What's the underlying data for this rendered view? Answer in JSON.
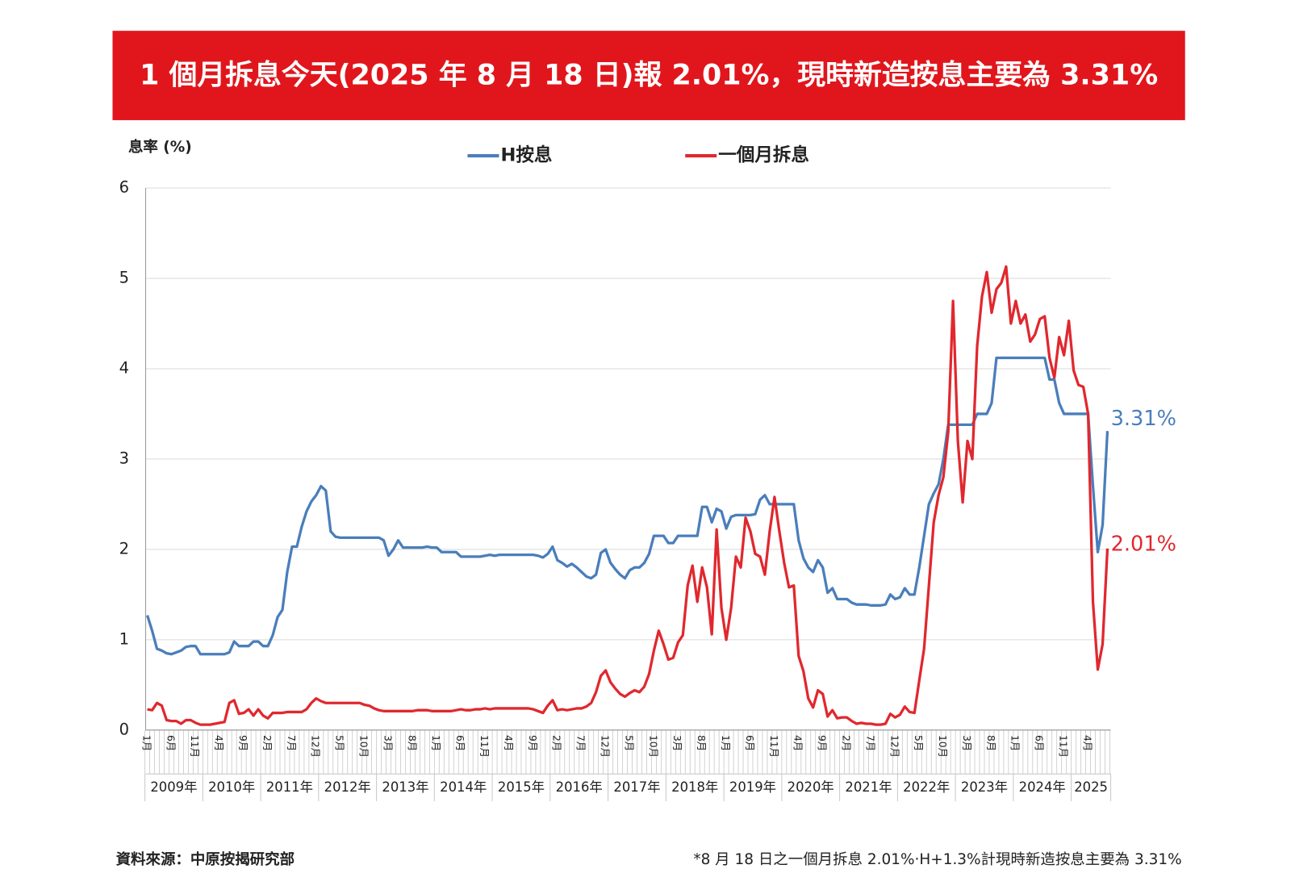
{
  "chart_data": {
    "type": "line",
    "title": "1 個月拆息今天(2025 年 8 月 18 日)報 2.01%，現時新造按息主要為 3.31%",
    "y_label": "息率 (%)",
    "source": "資料來源：中原按揭研究部",
    "note": "*8 月 18 日之一個月拆息 2.01%‧H+1.3%計現時新造按息主要為 3.31%",
    "ylim": [
      0,
      6
    ],
    "yticks": [
      0,
      1,
      2,
      3,
      4,
      5,
      6
    ],
    "grid": true,
    "year_labels": [
      "2009年",
      "2010年",
      "2011年",
      "2012年",
      "2013年",
      "2014年",
      "2015年",
      "2016年",
      "2017年",
      "2018年",
      "2019年",
      "2020年",
      "2021年",
      "2022年",
      "2023年",
      "2024年",
      "2025"
    ],
    "categories": [
      "1月",
      null,
      null,
      null,
      null,
      "6月",
      null,
      null,
      null,
      null,
      "11月",
      null,
      null,
      null,
      null,
      "4月",
      null,
      null,
      null,
      null,
      "9月",
      null,
      null,
      null,
      null,
      "2月",
      null,
      null,
      null,
      null,
      "7月",
      null,
      null,
      null,
      null,
      "12月",
      null,
      null,
      null,
      null,
      "5月",
      null,
      null,
      null,
      null,
      "10月",
      null,
      null,
      null,
      null,
      "3月",
      null,
      null,
      null,
      null,
      "8月",
      null,
      null,
      null,
      null,
      "1月",
      null,
      null,
      null,
      null,
      "6月",
      null,
      null,
      null,
      null,
      "11月",
      null,
      null,
      null,
      null,
      "4月",
      null,
      null,
      null,
      null,
      "9月",
      null,
      null,
      null,
      null,
      "2月",
      null,
      null,
      null,
      null,
      "7月",
      null,
      null,
      null,
      null,
      "12月",
      null,
      null,
      null,
      null,
      "5月",
      null,
      null,
      null,
      null,
      "10月",
      null,
      null,
      null,
      null,
      "3月",
      null,
      null,
      null,
      null,
      "8月",
      null,
      null,
      null,
      null,
      "1月",
      null,
      null,
      null,
      null,
      "6月",
      null,
      null,
      null,
      null,
      "11月",
      null,
      null,
      null,
      null,
      "4月",
      null,
      null,
      null,
      null,
      "9月",
      null,
      null,
      null,
      null,
      "2月",
      null,
      null,
      null,
      null,
      "7月",
      null,
      null,
      null,
      null,
      "12月",
      null,
      null,
      null,
      null,
      "5月",
      null,
      null,
      null,
      null,
      "10月",
      null,
      null,
      null,
      null,
      "3月",
      null,
      null,
      null,
      null,
      "8月",
      null,
      null,
      null,
      null,
      "1月",
      null,
      null,
      null,
      null,
      "6月",
      null,
      null,
      null,
      null,
      "11月",
      null,
      null,
      null,
      null,
      "4月",
      null,
      null,
      null,
      null
    ],
    "series": [
      {
        "name": "H按息",
        "color": "#4a7ebb",
        "end_label": "3.31%",
        "values": [
          1.27,
          1.1,
          0.9,
          0.88,
          0.85,
          0.84,
          0.86,
          0.88,
          0.92,
          0.93,
          0.93,
          0.84,
          0.84,
          0.84,
          0.84,
          0.84,
          0.84,
          0.86,
          0.98,
          0.93,
          0.93,
          0.93,
          0.98,
          0.98,
          0.93,
          0.93,
          1.05,
          1.25,
          1.33,
          1.75,
          2.03,
          2.03,
          2.25,
          2.42,
          2.53,
          2.6,
          2.7,
          2.65,
          2.2,
          2.14,
          2.13,
          2.13,
          2.13,
          2.13,
          2.13,
          2.13,
          2.13,
          2.13,
          2.13,
          2.1,
          1.93,
          2.0,
          2.1,
          2.02,
          2.02,
          2.02,
          2.02,
          2.02,
          2.03,
          2.02,
          2.02,
          1.97,
          1.97,
          1.97,
          1.97,
          1.92,
          1.92,
          1.92,
          1.92,
          1.92,
          1.93,
          1.94,
          1.93,
          1.94,
          1.94,
          1.94,
          1.94,
          1.94,
          1.94,
          1.94,
          1.94,
          1.93,
          1.91,
          1.95,
          2.03,
          1.88,
          1.85,
          1.81,
          1.84,
          1.8,
          1.75,
          1.7,
          1.68,
          1.72,
          1.96,
          2.0,
          1.85,
          1.78,
          1.72,
          1.68,
          1.77,
          1.8,
          1.8,
          1.85,
          1.95,
          2.15,
          2.15,
          2.15,
          2.07,
          2.07,
          2.15,
          2.15,
          2.15,
          2.15,
          2.15,
          2.47,
          2.47,
          2.3,
          2.45,
          2.42,
          2.23,
          2.36,
          2.38,
          2.38,
          2.38,
          2.38,
          2.39,
          2.55,
          2.6,
          2.5,
          2.5,
          2.5,
          2.5,
          2.5,
          2.5,
          2.1,
          1.9,
          1.8,
          1.75,
          1.88,
          1.8,
          1.52,
          1.57,
          1.45,
          1.45,
          1.45,
          1.41,
          1.39,
          1.39,
          1.39,
          1.38,
          1.38,
          1.38,
          1.39,
          1.5,
          1.45,
          1.47,
          1.57,
          1.5,
          1.5,
          1.8,
          2.15,
          2.5,
          2.62,
          2.72,
          3.0,
          3.38,
          3.38,
          3.38,
          3.38,
          3.38,
          3.38,
          3.5,
          3.5,
          3.5,
          3.62,
          4.12,
          4.12,
          4.12,
          4.12,
          4.12,
          4.12,
          4.12,
          4.12,
          4.12,
          4.12,
          4.12,
          3.88,
          3.88,
          3.62,
          3.5,
          3.5,
          3.5,
          3.5,
          3.5,
          3.5,
          2.7,
          1.97,
          2.27,
          3.31
        ]
      },
      {
        "name": "一個月拆息",
        "color": "#e0282e",
        "end_label": "2.01%",
        "values": [
          0.23,
          0.22,
          0.3,
          0.27,
          0.11,
          0.1,
          0.1,
          0.07,
          0.11,
          0.11,
          0.08,
          0.06,
          0.06,
          0.06,
          0.07,
          0.08,
          0.09,
          0.3,
          0.33,
          0.18,
          0.19,
          0.23,
          0.16,
          0.23,
          0.16,
          0.13,
          0.19,
          0.19,
          0.19,
          0.2,
          0.2,
          0.2,
          0.2,
          0.23,
          0.3,
          0.35,
          0.32,
          0.3,
          0.3,
          0.3,
          0.3,
          0.3,
          0.3,
          0.3,
          0.3,
          0.28,
          0.27,
          0.24,
          0.22,
          0.21,
          0.21,
          0.21,
          0.21,
          0.21,
          0.21,
          0.21,
          0.22,
          0.22,
          0.22,
          0.21,
          0.21,
          0.21,
          0.21,
          0.21,
          0.22,
          0.23,
          0.22,
          0.22,
          0.23,
          0.23,
          0.24,
          0.23,
          0.24,
          0.24,
          0.24,
          0.24,
          0.24,
          0.24,
          0.24,
          0.24,
          0.23,
          0.21,
          0.19,
          0.27,
          0.33,
          0.22,
          0.23,
          0.22,
          0.23,
          0.24,
          0.24,
          0.26,
          0.3,
          0.42,
          0.6,
          0.66,
          0.53,
          0.46,
          0.4,
          0.37,
          0.41,
          0.44,
          0.42,
          0.48,
          0.62,
          0.88,
          1.1,
          0.95,
          0.78,
          0.8,
          0.97,
          1.05,
          1.6,
          1.82,
          1.42,
          1.8,
          1.58,
          1.06,
          2.22,
          1.35,
          1.0,
          1.35,
          1.92,
          1.8,
          2.35,
          2.2,
          1.95,
          1.92,
          1.72,
          2.2,
          2.58,
          2.2,
          1.85,
          1.58,
          1.6,
          0.82,
          0.65,
          0.35,
          0.25,
          0.44,
          0.4,
          0.15,
          0.22,
          0.13,
          0.14,
          0.14,
          0.1,
          0.07,
          0.08,
          0.07,
          0.07,
          0.06,
          0.06,
          0.07,
          0.18,
          0.14,
          0.17,
          0.26,
          0.2,
          0.19,
          0.55,
          0.9,
          1.6,
          2.3,
          2.6,
          2.8,
          3.3,
          4.75,
          3.2,
          2.52,
          3.2,
          3.0,
          4.25,
          4.8,
          5.07,
          4.62,
          4.88,
          4.95,
          5.13,
          4.5,
          4.75,
          4.5,
          4.6,
          4.3,
          4.38,
          4.55,
          4.58,
          4.12,
          3.9,
          4.35,
          4.15,
          4.53,
          3.98,
          3.82,
          3.8,
          3.5,
          1.42,
          0.67,
          0.95,
          2.01
        ]
      }
    ]
  }
}
